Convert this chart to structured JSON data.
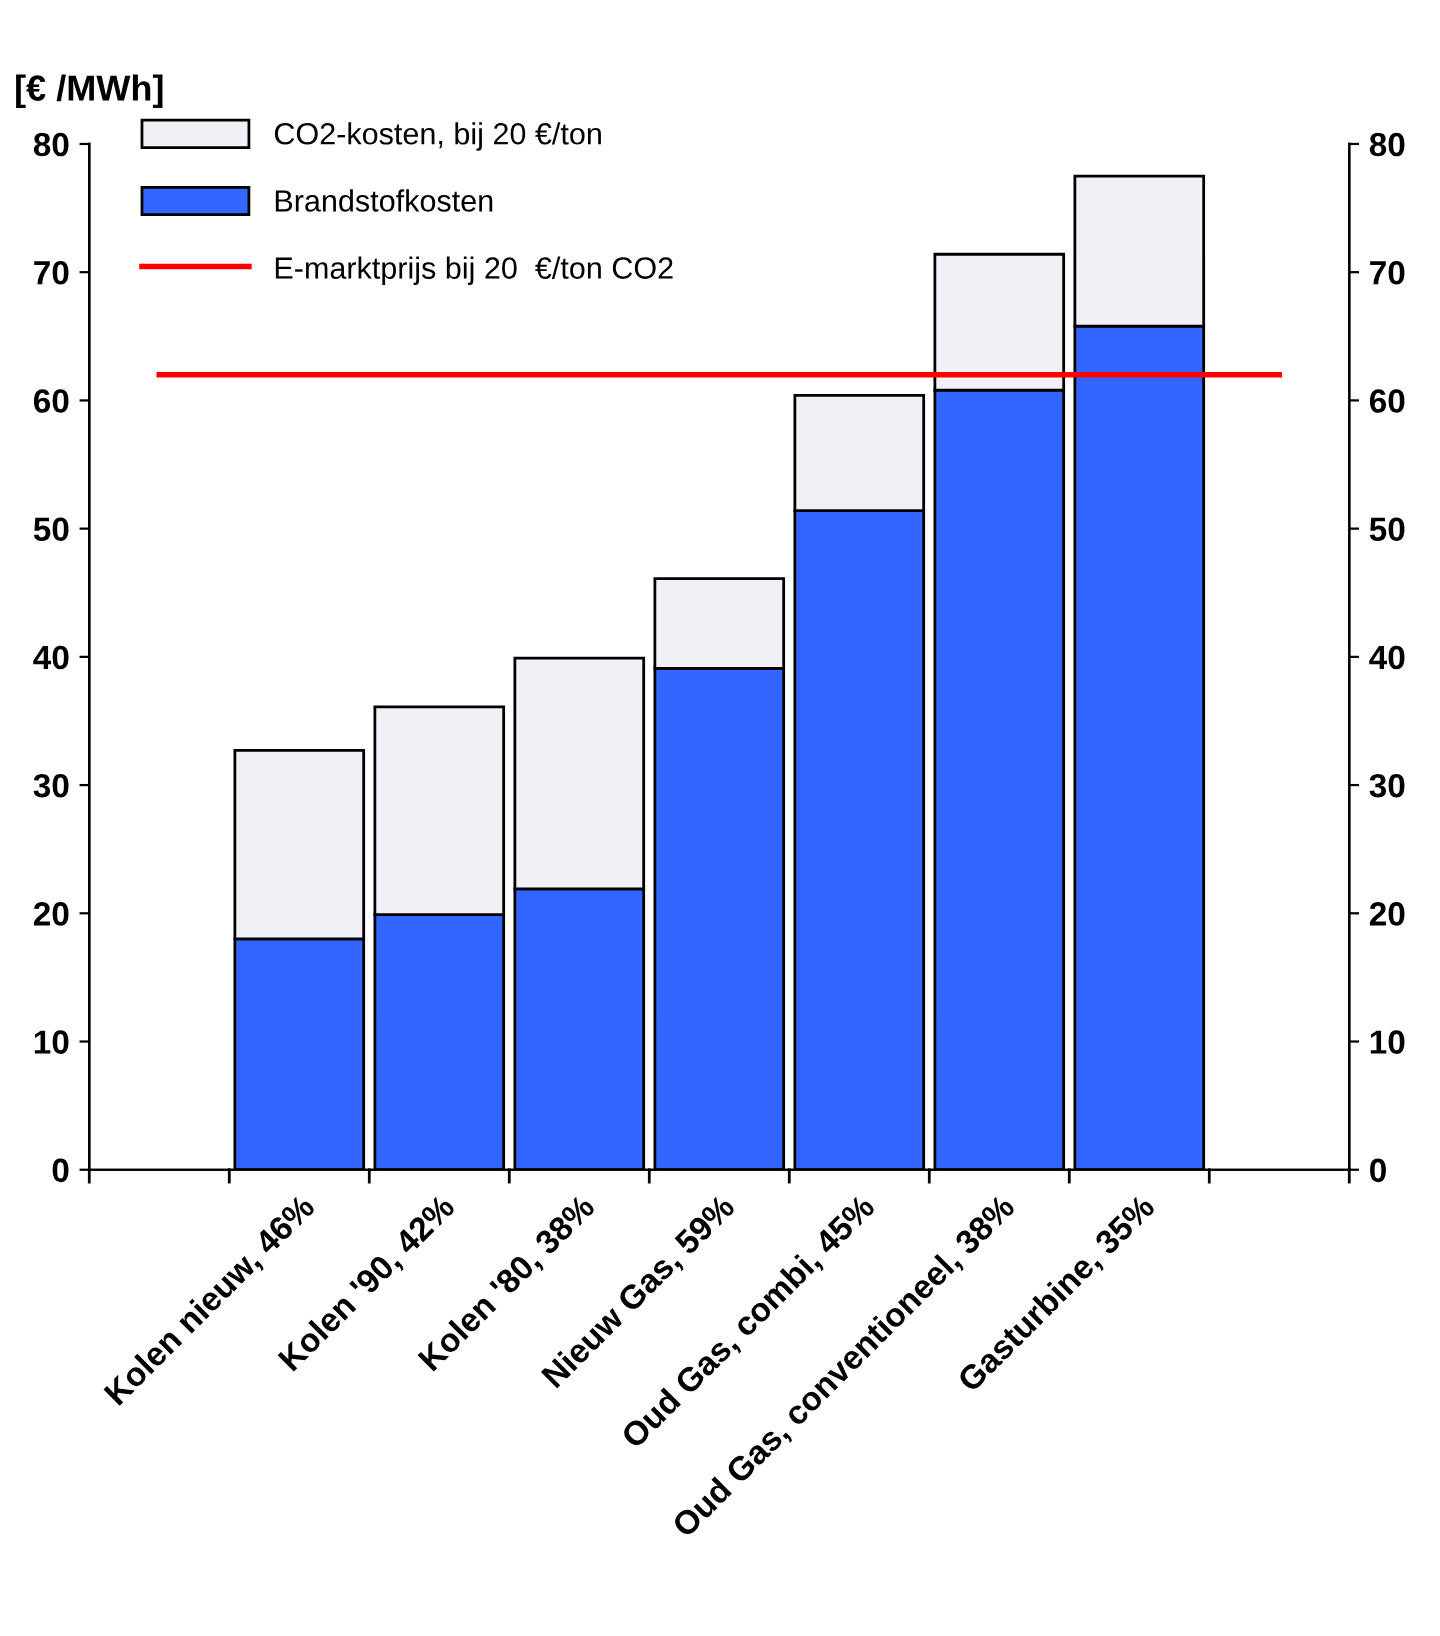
{
  "chart_data": {
    "type": "bar",
    "stacked": true,
    "ylabel": "[€ /MWh]",
    "categories": [
      null,
      "Kolen nieuw, 46%",
      "Kolen '90, 42%",
      "Kolen '80, 38%",
      "Nieuw Gas, 59%",
      "Oud Gas, combi, 45%",
      "Oud Gas, conventioneel, 38%",
      "Gasturbine, 35%",
      null
    ],
    "series": [
      {
        "name": "Brandstofkosten",
        "color": "#3366ff",
        "values": [
          null,
          18.0,
          19.9,
          21.9,
          39.1,
          51.4,
          60.8,
          65.8,
          null
        ]
      },
      {
        "name": "CO2-kosten, bij 20 €/ton",
        "color": "#f0f1f6",
        "values": [
          null,
          14.7,
          16.2,
          18.0,
          7.0,
          9.0,
          10.6,
          11.7,
          null
        ]
      },
      {
        "name": "E-marktprijs bij 20  €/ton CO2",
        "type": "line",
        "color": "#ff0000",
        "values": [
          62,
          62,
          62,
          62,
          62,
          62,
          62,
          62,
          62
        ]
      }
    ],
    "ylim": [
      0,
      80
    ],
    "yticks": [
      0,
      10,
      20,
      30,
      40,
      50,
      60,
      70,
      80
    ],
    "y2lim": [
      0,
      80
    ],
    "y2ticks": [
      0,
      10,
      20,
      30,
      40,
      50,
      60,
      70,
      80
    ],
    "legend": "top left",
    "grid": false
  }
}
